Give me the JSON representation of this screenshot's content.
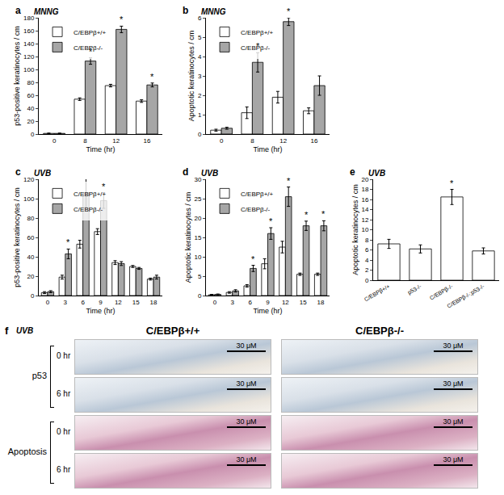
{
  "chart_data": [
    {
      "type": "bar",
      "label": "a",
      "title": "MNNG",
      "x_label": "Time (hr)",
      "y_label": "p53-positive keratinocytes / cm",
      "categories": [
        "0",
        "8",
        "12",
        "16"
      ],
      "ylim": [
        0,
        180
      ],
      "yticks": [
        0,
        20,
        40,
        60,
        80,
        100,
        120,
        140,
        160,
        180
      ],
      "legend": "upper left",
      "grid": false,
      "series": [
        {
          "name": "C/EBPβ+/+",
          "color": "#ffffff",
          "values": [
            1,
            54,
            75,
            51
          ],
          "errors": [
            0.5,
            2,
            2,
            2
          ],
          "asterisks": [
            null,
            null,
            null,
            null
          ]
        },
        {
          "name": "C/EBPβ-/-",
          "color": "#a6a6a6",
          "values": [
            1,
            113,
            162,
            76
          ],
          "errors": [
            0.5,
            5,
            5,
            3
          ],
          "asterisks": [
            null,
            "*",
            "*",
            "*"
          ]
        }
      ]
    },
    {
      "type": "bar",
      "label": "b",
      "title": "MNNG",
      "x_label": "Time (hr)",
      "y_label": "Apoptotic keratinocytes / cm",
      "categories": [
        "0",
        "8",
        "12",
        "16"
      ],
      "ylim": [
        0,
        6
      ],
      "yticks": [
        0,
        1,
        2,
        3,
        4,
        5,
        6
      ],
      "legend": "upper left",
      "grid": false,
      "series": [
        {
          "name": "C/EBPβ+/+",
          "color": "#ffffff",
          "values": [
            0.2,
            1.1,
            1.9,
            1.2
          ],
          "errors": [
            0.05,
            0.3,
            0.3,
            0.15
          ],
          "asterisks": [
            null,
            null,
            null,
            null
          ]
        },
        {
          "name": "C/EBPβ-/-",
          "color": "#a6a6a6",
          "values": [
            0.3,
            3.7,
            5.8,
            2.5
          ],
          "errors": [
            0.05,
            0.5,
            0.2,
            0.5
          ],
          "asterisks": [
            null,
            "*",
            "*",
            null
          ]
        }
      ]
    },
    {
      "type": "bar",
      "label": "c",
      "title": "UVB",
      "x_label": "Time (hr)",
      "y_label": "p53-positive keratinocytes / cm",
      "categories": [
        "0",
        "3",
        "6",
        "9",
        "12",
        "15",
        "18"
      ],
      "ylim": [
        0,
        120
      ],
      "yticks": [
        0,
        20,
        40,
        60,
        80,
        100,
        120
      ],
      "legend": "upper left",
      "grid": false,
      "series": [
        {
          "name": "C/EBPβ+/+",
          "color": "#ffffff",
          "values": [
            3,
            19,
            53,
            66,
            34,
            30,
            17
          ],
          "errors": [
            1,
            2,
            4,
            3,
            2,
            1,
            1
          ],
          "asterisks": [
            null,
            null,
            null,
            null,
            null,
            null,
            null
          ]
        },
        {
          "name": "C/EBPβ-/-",
          "color": "#a6a6a6",
          "values": [
            4,
            43,
            106,
            98,
            33,
            28,
            19
          ],
          "errors": [
            1,
            5,
            15,
            8,
            2,
            1,
            2
          ],
          "asterisks": [
            null,
            "*",
            "*",
            "*",
            null,
            null,
            null
          ]
        }
      ]
    },
    {
      "type": "bar",
      "label": "d",
      "title": "UVB",
      "x_label": "Time (hr)",
      "y_label": "Apoptotic keratinocytes / cm",
      "categories": [
        "0",
        "3",
        "6",
        "9",
        "12",
        "15",
        "18"
      ],
      "ylim": [
        0,
        30
      ],
      "yticks": [
        0,
        5,
        10,
        15,
        20,
        25,
        30
      ],
      "legend": "upper left",
      "grid": false,
      "series": [
        {
          "name": "C/EBPβ+/+",
          "color": "#ffffff",
          "values": [
            0.2,
            0.8,
            2.5,
            8.2,
            12.5,
            5.5,
            5.5
          ],
          "errors": [
            0.1,
            0.2,
            0.3,
            1.3,
            1.5,
            0.3,
            0.3
          ],
          "asterisks": [
            null,
            null,
            null,
            null,
            null,
            null,
            null
          ]
        },
        {
          "name": "C/EBPβ-/-",
          "color": "#a6a6a6",
          "values": [
            0.3,
            1.2,
            7,
            16,
            25.5,
            18,
            18
          ],
          "errors": [
            0.1,
            0.3,
            0.8,
            1.5,
            2.5,
            1.2,
            1.3
          ],
          "asterisks": [
            null,
            null,
            "*",
            "*",
            "*",
            "*",
            "*"
          ]
        }
      ]
    },
    {
      "type": "bar",
      "label": "e",
      "title": "UVB",
      "y_label": "Apoptotic keratinocytes / cm",
      "categories": [
        "C/EBPβ+/+",
        "p53-/-",
        "C/EBPβ-/-",
        "C/EBPβ-/-;p53-/-"
      ],
      "ylim": [
        0,
        20
      ],
      "yticks": [
        0,
        2,
        4,
        6,
        8,
        10,
        12,
        14,
        16,
        18,
        20
      ],
      "grid": false,
      "series": [
        {
          "color": "#ffffff",
          "values": [
            7.2,
            6.2,
            16.5,
            5.8
          ],
          "errors": [
            0.9,
            0.8,
            1.5,
            0.6
          ],
          "asterisks": [
            null,
            null,
            "*",
            null
          ]
        }
      ]
    }
  ],
  "image_panel": {
    "label": "f",
    "title": "UVB",
    "columns": [
      "C/EBPβ+/+",
      "C/EBPβ-/-"
    ],
    "groups": [
      {
        "name": "p53",
        "rows": [
          "0 hr",
          "6 hr"
        ]
      },
      {
        "name": "Apoptosis",
        "rows": [
          "0 hr",
          "6 hr"
        ]
      }
    ],
    "scale_bar": "30 μM"
  }
}
